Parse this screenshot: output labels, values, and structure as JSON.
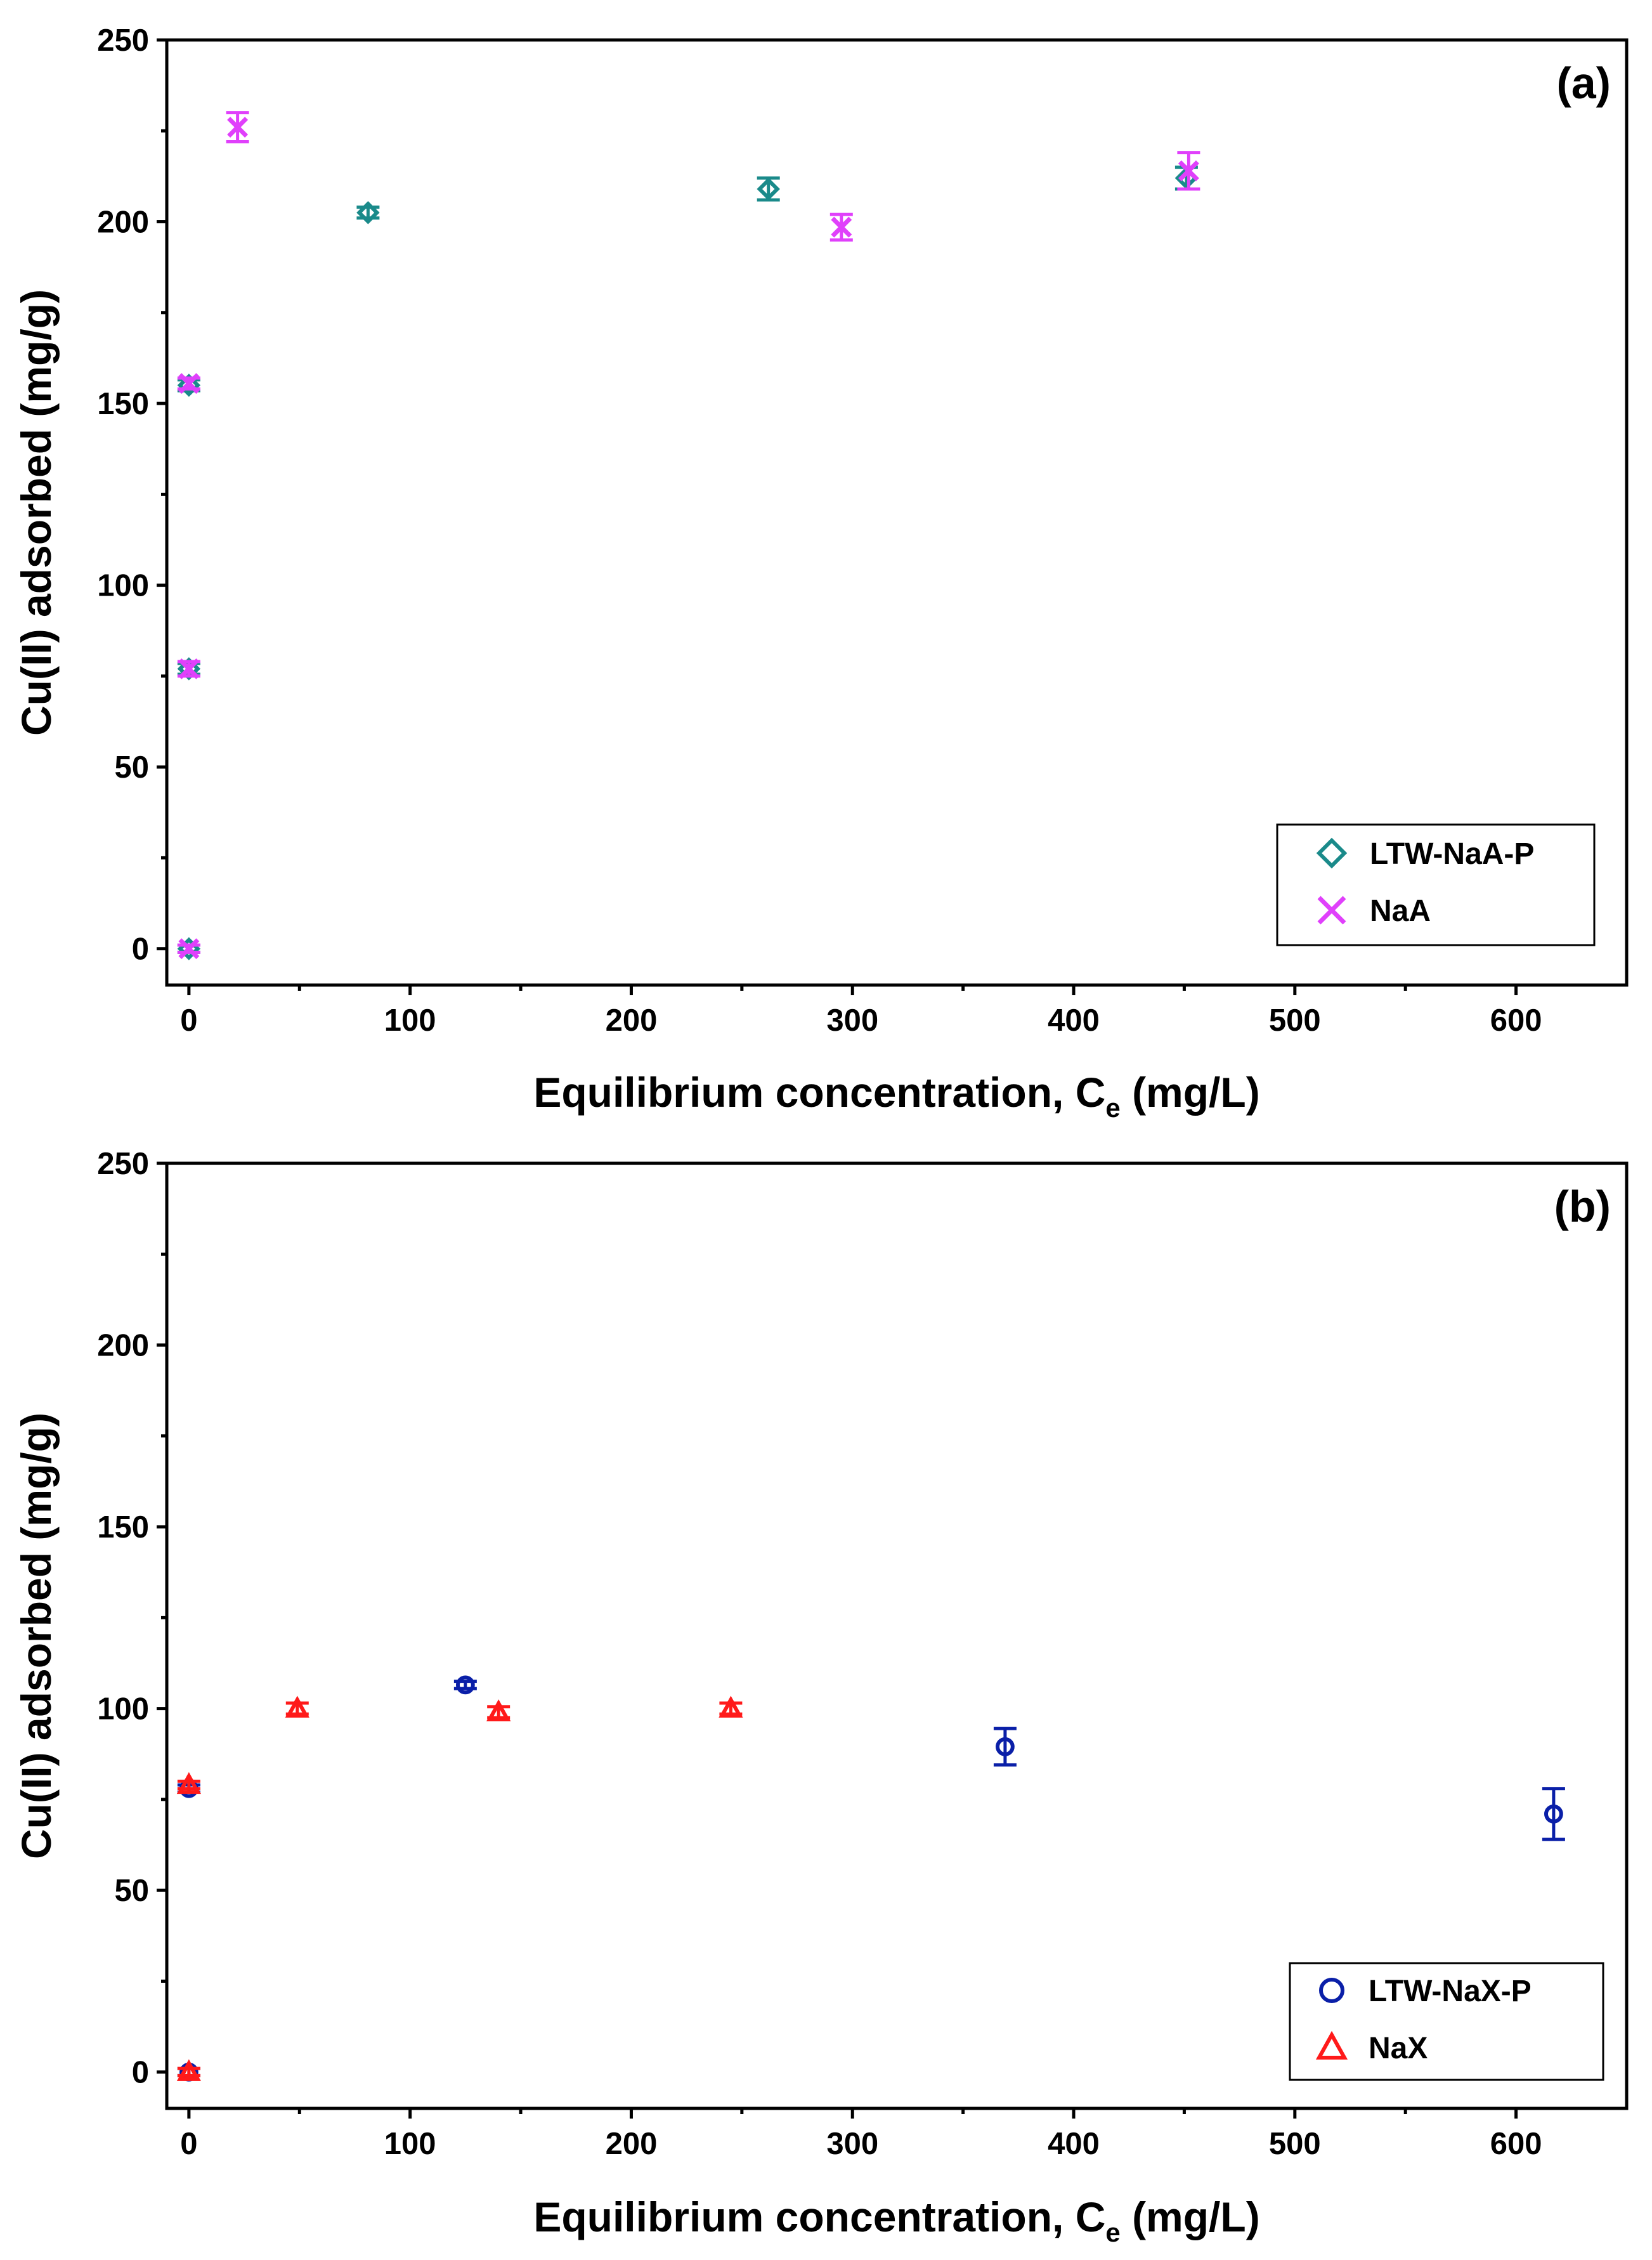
{
  "colors": {
    "LTW-NaA-P": "#1a8a8a",
    "NaA": "#e040fb",
    "LTW-NaX-P": "#0a1fa8",
    "NaX": "#ff1a1a"
  },
  "chart_data": [
    {
      "type": "scatter",
      "panel_label": "(a)",
      "xlabel_main": "Equilibrium concentration, C",
      "xlabel_sub": "e",
      "xlabel_unit": " (mg/L)",
      "ylabel": "Cu(II) adsorbed (mg/g)",
      "xlim": [
        -10,
        650
      ],
      "ylim": [
        -10,
        250
      ],
      "xticks": [
        0,
        100,
        200,
        300,
        400,
        500,
        600
      ],
      "yticks": [
        0,
        50,
        100,
        150,
        200,
        250
      ],
      "legend_position": "bottom-right",
      "series": [
        {
          "name": "LTW-NaA-P",
          "marker": "diamond",
          "points": [
            {
              "x": 0,
              "y": 0,
              "err": 1
            },
            {
              "x": 0,
              "y": 77,
              "err": 1.5
            },
            {
              "x": 0,
              "y": 155,
              "err": 1.5
            },
            {
              "x": 81,
              "y": 202.5,
              "err": 1.5
            },
            {
              "x": 262,
              "y": 209,
              "err": 3
            },
            {
              "x": 451,
              "y": 212,
              "err": 3
            }
          ]
        },
        {
          "name": "NaA",
          "marker": "x",
          "points": [
            {
              "x": 0,
              "y": 0,
              "err": 1
            },
            {
              "x": 0,
              "y": 77,
              "err": 2
            },
            {
              "x": 0,
              "y": 155.5,
              "err": 1.5
            },
            {
              "x": 22,
              "y": 226,
              "err": 4
            },
            {
              "x": 295,
              "y": 198.5,
              "err": 3.5
            },
            {
              "x": 452,
              "y": 214,
              "err": 5
            }
          ]
        }
      ]
    },
    {
      "type": "scatter",
      "panel_label": "(b)",
      "xlabel_main": "Equilibrium concentration, C",
      "xlabel_sub": "e",
      "xlabel_unit": " (mg/L)",
      "ylabel": "Cu(II) adsorbed (mg/g)",
      "xlim": [
        -10,
        650
      ],
      "ylim": [
        -10,
        250
      ],
      "xticks": [
        0,
        100,
        200,
        300,
        400,
        500,
        600
      ],
      "yticks": [
        0,
        50,
        100,
        150,
        200,
        250
      ],
      "legend_position": "bottom-right",
      "series": [
        {
          "name": "LTW-NaX-P",
          "marker": "circle",
          "points": [
            {
              "x": 0,
              "y": 0,
              "err": 1
            },
            {
              "x": 0,
              "y": 78,
              "err": 1
            },
            {
              "x": 125,
              "y": 106.5,
              "err": 1
            },
            {
              "x": 369,
              "y": 89.5,
              "err": 5
            },
            {
              "x": 617,
              "y": 71,
              "err": 7
            }
          ]
        },
        {
          "name": "NaX",
          "marker": "triangle",
          "points": [
            {
              "x": 0,
              "y": 0,
              "err": 1
            },
            {
              "x": 0,
              "y": 79,
              "err": 1
            },
            {
              "x": 49,
              "y": 100,
              "err": 1.5
            },
            {
              "x": 140,
              "y": 99,
              "err": 1.5
            },
            {
              "x": 245,
              "y": 100,
              "err": 1.5
            }
          ]
        }
      ]
    }
  ]
}
